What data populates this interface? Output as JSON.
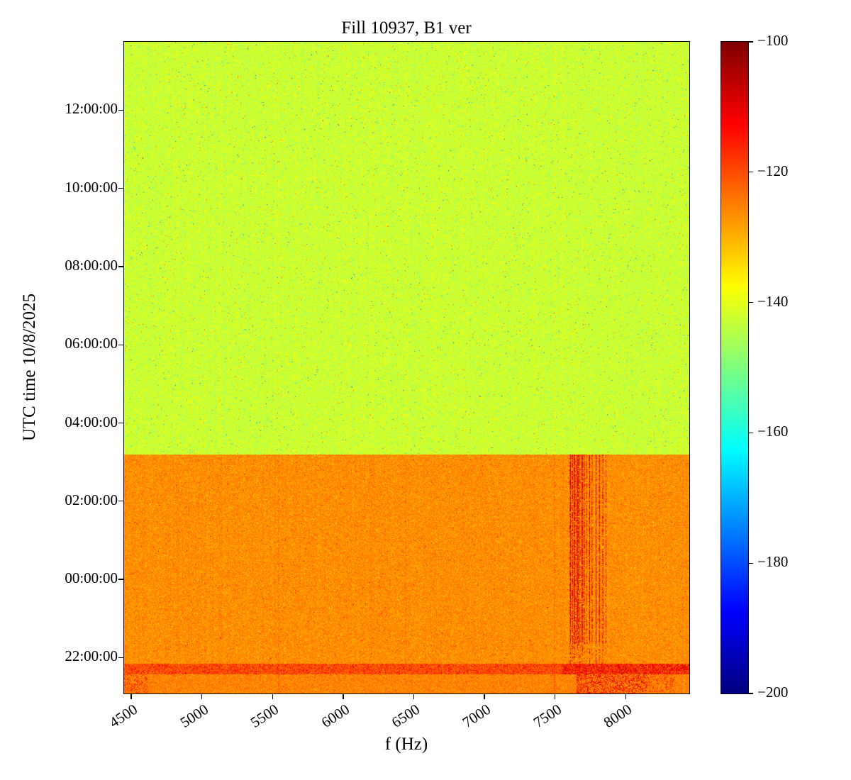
{
  "chart_data": {
    "type": "heatmap",
    "title": "Fill 10937, B1 ver",
    "xlabel": "f (Hz)",
    "ylabel": "UTC time 10/8/2025",
    "colormap": "jet",
    "x_range_hz": [
      4450,
      8450
    ],
    "x_ticks": [
      4500,
      5000,
      5500,
      6000,
      6500,
      7000,
      7500,
      8000
    ],
    "x_tick_labels": [
      "4500",
      "5000",
      "5500",
      "6000",
      "6500",
      "7000",
      "7500",
      "8000"
    ],
    "y_range_hours": [
      21.08,
      37.75
    ],
    "y_ticks_hours": [
      22,
      24,
      26,
      28,
      30,
      32,
      34,
      36
    ],
    "y_tick_labels": [
      "22:00:00",
      "00:00:00",
      "02:00:00",
      "04:00:00",
      "06:00:00",
      "08:00:00",
      "10:00:00",
      "12:00:00"
    ],
    "colorbar": {
      "min": -200,
      "max": -100,
      "ticks": [
        -100,
        -120,
        -140,
        -160,
        -180,
        -200
      ],
      "tick_labels": [
        "−100",
        "−120",
        "−140",
        "−160",
        "−180",
        "−200"
      ]
    },
    "model": {
      "seed": 20251008,
      "transition_hours": 27.2,
      "upper_region": {
        "mean_db": -142.5,
        "spread_db": 6.0
      },
      "lower_region": {
        "mean_db": -126.5,
        "spread_db": 5.5
      },
      "band": {
        "top_hours": 21.84,
        "bottom_hours": 21.57,
        "mean_db": -121.5
      },
      "bottom_rows": {
        "mean_db": -125.5,
        "hot_hz": [
          7650,
          8150
        ]
      },
      "faint_lines_hz": [
        5545,
        6445,
        7497
      ],
      "streaks_hz": [
        [
          7608,
          0.9
        ],
        [
          7622,
          0.65
        ],
        [
          7636,
          1.0
        ],
        [
          7648,
          0.55
        ],
        [
          7662,
          0.9
        ],
        [
          7676,
          0.5
        ],
        [
          7692,
          0.8
        ],
        [
          7706,
          0.6
        ],
        [
          7724,
          0.45
        ],
        [
          7744,
          0.9
        ],
        [
          7762,
          0.5
        ],
        [
          7790,
          0.75
        ],
        [
          7814,
          0.6
        ],
        [
          7838,
          0.5
        ],
        [
          7860,
          0.4
        ]
      ],
      "streak_peak_db": -105,
      "streak_dash_below_hours": 22.35
    }
  }
}
